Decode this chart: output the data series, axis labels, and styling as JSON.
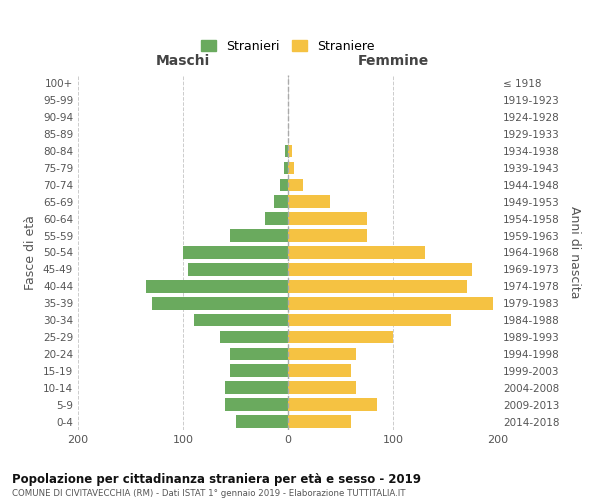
{
  "age_groups": [
    "0-4",
    "5-9",
    "10-14",
    "15-19",
    "20-24",
    "25-29",
    "30-34",
    "35-39",
    "40-44",
    "45-49",
    "50-54",
    "55-59",
    "60-64",
    "65-69",
    "70-74",
    "75-79",
    "80-84",
    "85-89",
    "90-94",
    "95-99",
    "100+"
  ],
  "birth_years": [
    "2014-2018",
    "2009-2013",
    "2004-2008",
    "1999-2003",
    "1994-1998",
    "1989-1993",
    "1984-1988",
    "1979-1983",
    "1974-1978",
    "1969-1973",
    "1964-1968",
    "1959-1963",
    "1954-1958",
    "1949-1953",
    "1944-1948",
    "1939-1943",
    "1934-1938",
    "1929-1933",
    "1924-1928",
    "1919-1923",
    "≤ 1918"
  ],
  "maschi": [
    50,
    60,
    60,
    55,
    55,
    65,
    90,
    130,
    135,
    95,
    100,
    55,
    22,
    13,
    8,
    4,
    3,
    0,
    0,
    0,
    0
  ],
  "femmine": [
    60,
    85,
    65,
    60,
    65,
    100,
    155,
    195,
    170,
    175,
    130,
    75,
    75,
    40,
    14,
    6,
    4,
    0,
    0,
    0,
    0
  ],
  "color_maschi": "#6aaa5e",
  "color_femmine": "#f5c242",
  "background_color": "#ffffff",
  "grid_color": "#cccccc",
  "title": "Popolazione per cittadinanza straniera per età e sesso - 2019",
  "subtitle": "COMUNE DI CIVITAVECCHIA (RM) - Dati ISTAT 1° gennaio 2019 - Elaborazione TUTTITALIA.IT",
  "ylabel_left": "Fasce di età",
  "ylabel_right": "Anni di nascita",
  "xlabel_left": "Maschi",
  "xlabel_right": "Femmine",
  "legend_maschi": "Stranieri",
  "legend_femmine": "Straniere",
  "xlim": 200
}
